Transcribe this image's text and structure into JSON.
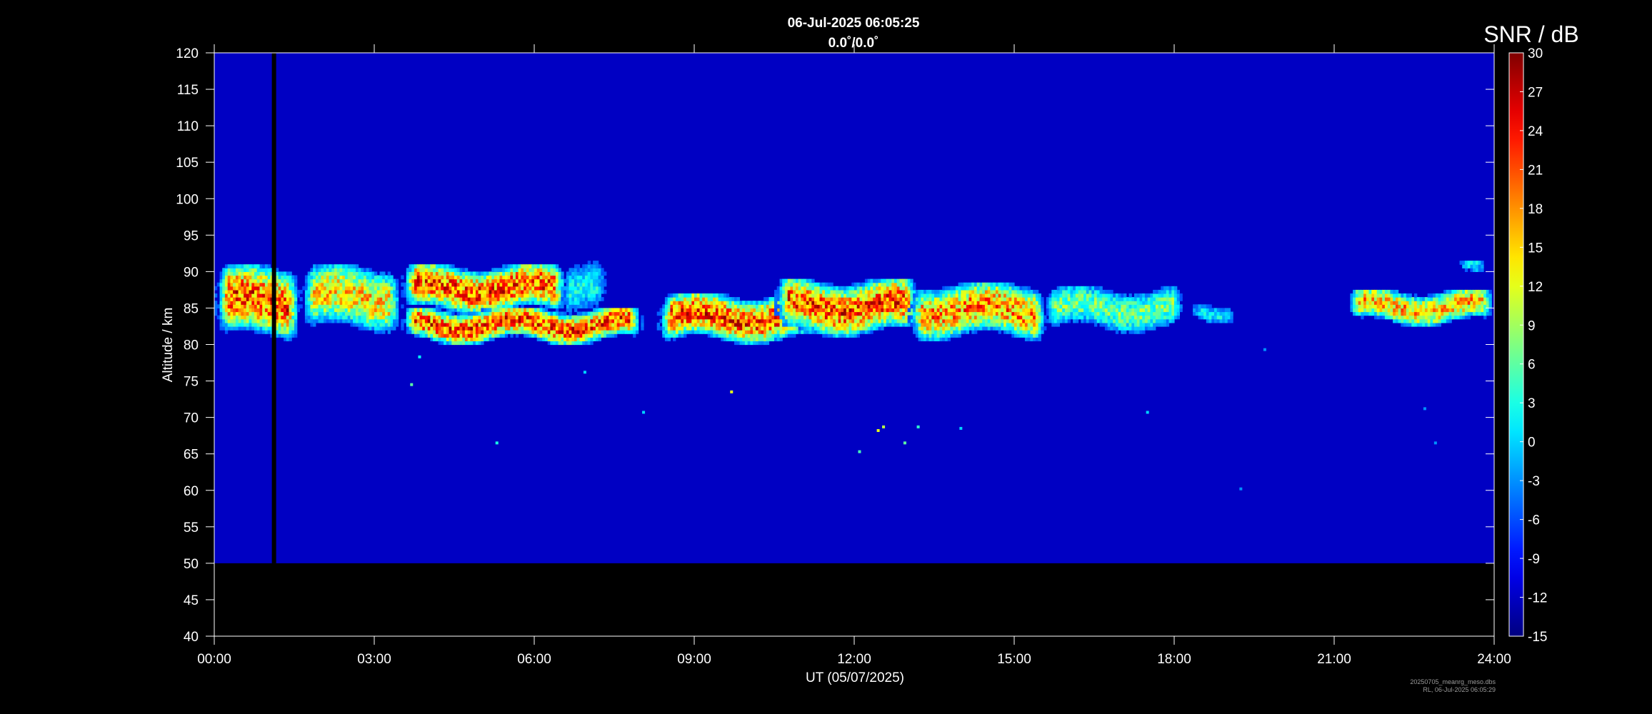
{
  "chart_data": {
    "type": "heatmap",
    "title": "06-Jul-2025 06:05:25",
    "subtitle": "0.0˚/0.0˚",
    "xlabel": "UT (05/07/2025)",
    "ylabel": "Altitude / km",
    "x_range_hours": [
      0,
      24
    ],
    "x_ticks": [
      "00:00",
      "03:00",
      "06:00",
      "09:00",
      "12:00",
      "15:00",
      "18:00",
      "21:00",
      "24:00"
    ],
    "ylim": [
      40,
      120
    ],
    "y_ticks": [
      40,
      45,
      50,
      55,
      60,
      65,
      70,
      75,
      80,
      85,
      90,
      95,
      100,
      105,
      110,
      115,
      120
    ],
    "data_altitude_range_km": [
      50,
      120
    ],
    "background_snr_db": -12,
    "colorbar": {
      "label": "SNR / dB",
      "range": [
        -15,
        30
      ],
      "ticks": [
        -15,
        -12,
        -9,
        -6,
        -3,
        0,
        3,
        6,
        9,
        12,
        15,
        18,
        21,
        24,
        27,
        30
      ],
      "colormap": "jet"
    },
    "data_gap_hours": [
      1.08,
      1.16
    ],
    "echo_layers": [
      {
        "t_start": 0.0,
        "t_end": 1.6,
        "alt_low": 81,
        "alt_high": 90.5,
        "peak_snr": 30
      },
      {
        "t_start": 1.6,
        "t_end": 3.5,
        "alt_low": 82,
        "alt_high": 90.5,
        "peak_snr": 22
      },
      {
        "t_start": 3.5,
        "t_end": 6.6,
        "alt_low": 84.5,
        "alt_high": 90.5,
        "peak_snr": 30
      },
      {
        "t_start": 3.5,
        "t_end": 8.0,
        "alt_low": 80.5,
        "alt_high": 84.5,
        "peak_snr": 30
      },
      {
        "t_start": 6.4,
        "t_end": 7.4,
        "alt_low": 84,
        "alt_high": 91,
        "peak_snr": 6
      },
      {
        "t_start": 8.3,
        "t_end": 11.5,
        "alt_low": 80.5,
        "alt_high": 86.5,
        "peak_snr": 30
      },
      {
        "t_start": 10.5,
        "t_end": 13.2,
        "alt_low": 81.5,
        "alt_high": 88.5,
        "peak_snr": 30
      },
      {
        "t_start": 13.0,
        "t_end": 15.6,
        "alt_low": 81,
        "alt_high": 88,
        "peak_snr": 26
      },
      {
        "t_start": 15.5,
        "t_end": 18.2,
        "alt_low": 82,
        "alt_high": 87.5,
        "peak_snr": 12
      },
      {
        "t_start": 18.2,
        "t_end": 19.2,
        "alt_low": 83.5,
        "alt_high": 85.5,
        "peak_snr": 5
      },
      {
        "t_start": 21.2,
        "t_end": 24.0,
        "alt_low": 83,
        "alt_high": 87,
        "peak_snr": 24
      },
      {
        "t_start": 23.2,
        "t_end": 23.9,
        "alt_low": 89.5,
        "alt_high": 91,
        "peak_snr": 5
      }
    ],
    "echo_points": [
      {
        "t": 3.85,
        "alt": 78.3,
        "snr": 2
      },
      {
        "t": 3.7,
        "alt": 74.5,
        "snr": 6
      },
      {
        "t": 5.3,
        "alt": 66.5,
        "snr": 3
      },
      {
        "t": 6.95,
        "alt": 76.2,
        "snr": 0
      },
      {
        "t": 8.05,
        "alt": 70.7,
        "snr": 0
      },
      {
        "t": 9.7,
        "alt": 73.5,
        "snr": 12
      },
      {
        "t": 12.1,
        "alt": 65.3,
        "snr": 5
      },
      {
        "t": 12.45,
        "alt": 68.2,
        "snr": 12
      },
      {
        "t": 12.55,
        "alt": 68.7,
        "snr": 10
      },
      {
        "t": 12.95,
        "alt": 66.5,
        "snr": 6
      },
      {
        "t": 13.2,
        "alt": 68.7,
        "snr": 4
      },
      {
        "t": 14.0,
        "alt": 68.5,
        "snr": 0
      },
      {
        "t": 17.5,
        "alt": 70.7,
        "snr": 0
      },
      {
        "t": 19.25,
        "alt": 60.2,
        "snr": -3
      },
      {
        "t": 19.7,
        "alt": 79.3,
        "snr": -3
      },
      {
        "t": 22.7,
        "alt": 71.2,
        "snr": -3
      },
      {
        "t": 22.9,
        "alt": 66.5,
        "snr": -3
      }
    ]
  },
  "colors": {
    "background": "#000000",
    "axis": "#ffffff",
    "no_data": "#000000"
  },
  "footer": {
    "line1": "20250705_meanrg_meso.dbs",
    "line2": "RL, 06-Jul-2025 06:05:29"
  }
}
